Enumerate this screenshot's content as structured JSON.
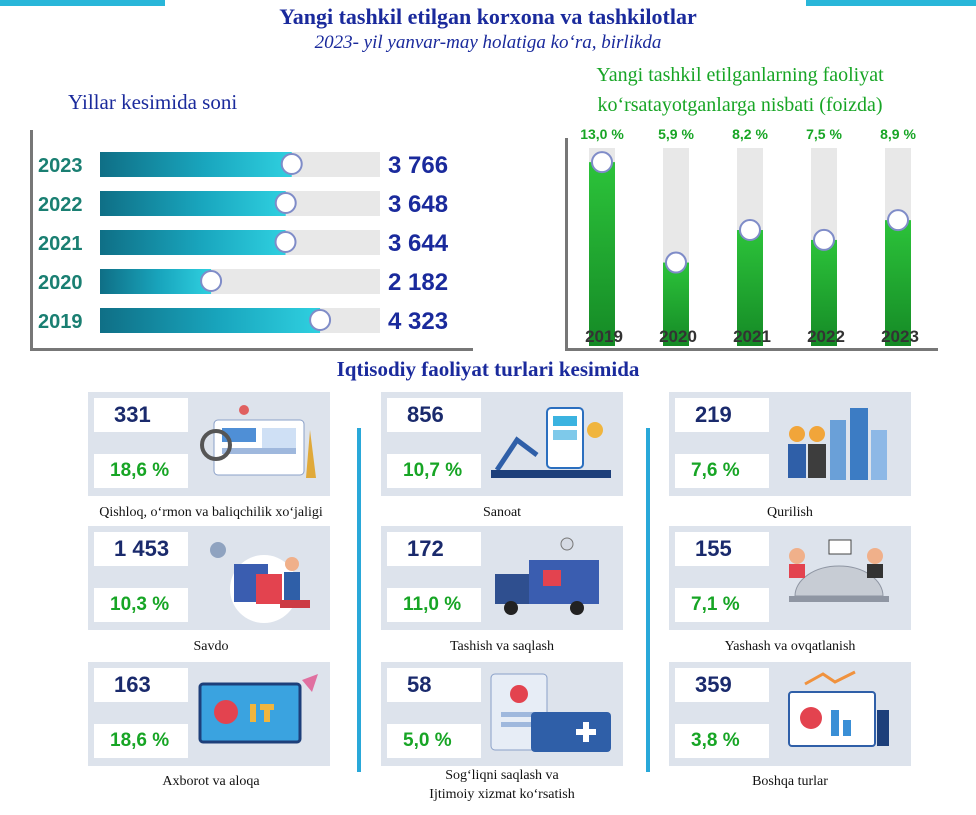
{
  "header": {
    "title": "Yangi tashkil etilgan korxona va tashkilotlar",
    "subtitle": "2023- yil yanvar-may holatiga ko‘ra, birlikda"
  },
  "left_chart_title": "Yillar kesimida soni",
  "right_chart_title_line1": "Yangi tashkil etilganlarning faoliyat",
  "right_chart_title_line2": "ko‘rsatayotganlarga nisbati (foizda)",
  "sectors_title": "Iqtisodiy faoliyat turlari kesimida",
  "colors": {
    "teal": "#1fb5c9",
    "green": "#1a9e2c",
    "navy": "#1a2a9c"
  },
  "chart_data": [
    {
      "type": "bar",
      "orientation": "horizontal",
      "title": "Yillar kesimida soni",
      "categories": [
        "2023",
        "2022",
        "2021",
        "2020",
        "2019"
      ],
      "values": [
        3766,
        3648,
        3644,
        2182,
        4323
      ],
      "labels": [
        "3 766",
        "3 648",
        "3 644",
        "2 182",
        "4 323"
      ],
      "xlim": [
        0,
        5500
      ]
    },
    {
      "type": "bar",
      "title": "Yangi tashkil etilganlarning faoliyat ko‘rsatayotganlarga nisbati (foizda)",
      "categories": [
        "2019",
        "2020",
        "2021",
        "2022",
        "2023"
      ],
      "values": [
        13.0,
        5.9,
        8.2,
        7.5,
        8.9
      ],
      "labels": [
        "13,0 %",
        "5,9 %",
        "8,2 %",
        "7,5 %",
        "8,9 %"
      ],
      "ylim": [
        0,
        14
      ]
    }
  ],
  "sectors": [
    {
      "name": "Qishloq, o‘rmon va baliqchilik xo‘jaligi",
      "count": "331",
      "share": "18,6 %",
      "icon": "agriculture-illustration"
    },
    {
      "name": "Sanoat",
      "count": "856",
      "share": "10,7 %",
      "icon": "factory-illustration"
    },
    {
      "name": "Qurilish",
      "count": "219",
      "share": "7,6 %",
      "icon": "construction-illustration"
    },
    {
      "name": "Savdo",
      "count": "1 453",
      "share": "10,3 %",
      "icon": "shopping-illustration"
    },
    {
      "name": "Tashish va saqlash",
      "count": "172",
      "share": "11,0 %",
      "icon": "delivery-truck-illustration"
    },
    {
      "name": "Yashash va ovqatlanish",
      "count": "155",
      "share": "7,1 %",
      "icon": "hospitality-illustration"
    },
    {
      "name": "Axborot va aloqa",
      "count": "163",
      "share": "18,6 %",
      "icon": "it-illustration"
    },
    {
      "name": "Sog‘liqni saqlash va",
      "name2": "Ijtimoiy xizmat ko‘rsatish",
      "count": "58",
      "share": "5,0 %",
      "icon": "health-card-illustration"
    },
    {
      "name": "Boshqa turlar",
      "count": "359",
      "share": "3,8 %",
      "icon": "analytics-illustration"
    }
  ]
}
